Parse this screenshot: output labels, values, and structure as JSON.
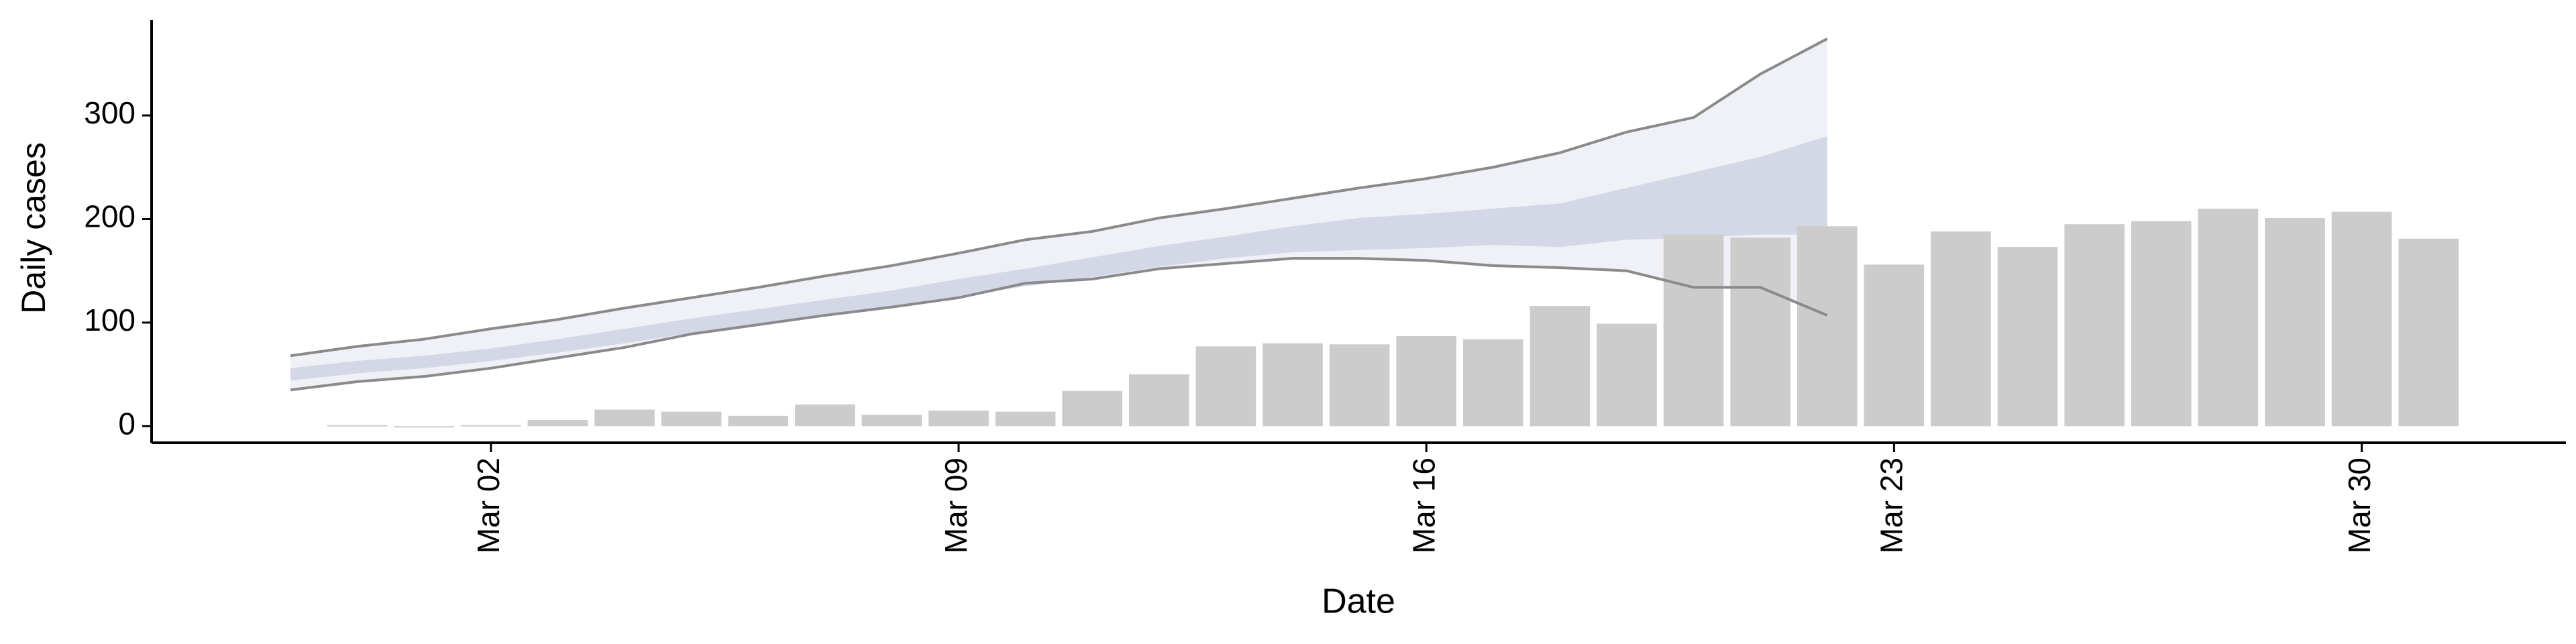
{
  "chart_data": {
    "type": "bar",
    "x_label": "Date",
    "y_label": "Daily cases",
    "categories": [
      null,
      null,
      null,
      "Mar 02",
      null,
      null,
      null,
      null,
      null,
      null,
      "Mar 09",
      null,
      null,
      null,
      null,
      null,
      null,
      "Mar 16",
      null,
      null,
      null,
      null,
      null,
      null,
      "Mar 23",
      null,
      null,
      null,
      null,
      null,
      null,
      "Mar 30",
      null
    ],
    "values": [
      null,
      1,
      0,
      1,
      6,
      16,
      14,
      10,
      21,
      11,
      15,
      14,
      34,
      50,
      77,
      80,
      79,
      87,
      84,
      116,
      99,
      185,
      182,
      193,
      156,
      188,
      173,
      195,
      198,
      210,
      201,
      207,
      181
    ],
    "color": "#cccccc",
    "series": [
      {
        "color": "#8a8a8a",
        "values": [
          68,
          77,
          84,
          94,
          103,
          114,
          124,
          134,
          145,
          155,
          167,
          180,
          188,
          201,
          210,
          220,
          230,
          239,
          250,
          264,
          284,
          298,
          340,
          374,
          null,
          null,
          null,
          null,
          null,
          null,
          null,
          null,
          null
        ]
      },
      {
        "color": "#8a8a8a",
        "values": [
          35,
          43,
          48,
          56,
          66,
          76,
          89,
          98,
          107,
          115,
          124,
          138,
          142,
          152,
          157,
          162,
          162,
          160,
          155,
          153,
          150,
          134,
          134,
          107,
          null,
          null,
          null,
          null,
          null,
          null,
          null,
          null,
          null
        ]
      },
      {
        "color": "#c9cee0",
        "values": [
          56,
          63,
          68,
          75,
          84,
          94,
          104,
          113,
          122,
          131,
          142,
          152,
          163,
          174,
          183,
          193,
          201,
          205,
          210,
          215,
          230,
          245,
          260,
          280,
          null,
          null,
          null,
          null,
          null,
          null,
          null,
          null,
          null
        ]
      },
      {
        "color": "#c9cee0",
        "values": [
          44,
          51,
          56,
          63,
          71,
          80,
          90,
          98,
          107,
          115,
          125,
          135,
          144,
          154,
          162,
          168,
          170,
          172,
          175,
          173,
          180,
          182,
          185,
          185,
          null,
          null,
          null,
          null,
          null,
          null,
          null,
          null,
          null
        ]
      }
    ],
    "band_color": "#eef0f5",
    "ylim": [
      -16,
      392
    ],
    "yticks": [
      0,
      100,
      200,
      300
    ],
    "grid": false
  }
}
